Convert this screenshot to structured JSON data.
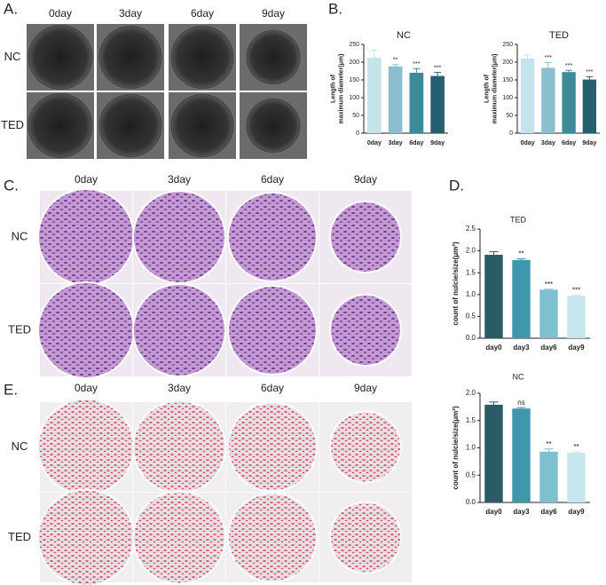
{
  "panels": {
    "A": {
      "label": "A.",
      "columns": [
        "0day",
        "3day",
        "6day",
        "9day"
      ],
      "rows": [
        "NC",
        "TED"
      ]
    },
    "B": {
      "label": "B."
    },
    "C": {
      "label": "C.",
      "columns": [
        "0day",
        "3day",
        "6day",
        "9day"
      ],
      "rows": [
        "NC",
        "TED"
      ]
    },
    "D": {
      "label": "D."
    },
    "E": {
      "label": "E.",
      "columns": [
        "0day",
        "3day",
        "6day",
        "9day"
      ],
      "rows": [
        "NC",
        "TED"
      ]
    }
  },
  "chart_data": [
    {
      "type": "bar",
      "title": "NC",
      "y_label": [
        "Length of",
        "maximum diameter(μm)"
      ],
      "categories": [
        "0day",
        "3day",
        "6day",
        "9day"
      ],
      "values": [
        212,
        188,
        170,
        161
      ],
      "errors": [
        22,
        5,
        12,
        10
      ],
      "annotations": [
        null,
        "**",
        "***",
        "***"
      ],
      "colors": [
        "#c5e3ea",
        "#8bbfcf",
        "#3d8a99",
        "#26606e"
      ],
      "ylim": [
        0,
        250
      ],
      "yticks": [
        0,
        50,
        100,
        150,
        200,
        250
      ]
    },
    {
      "type": "bar",
      "title": "TED",
      "y_label": [
        "Length of",
        "maximum diameter(μm)"
      ],
      "categories": [
        "0day",
        "3day",
        "6day",
        "9day"
      ],
      "values": [
        210,
        184,
        172,
        151
      ],
      "errors": [
        10,
        15,
        5,
        8
      ],
      "annotations": [
        null,
        "***",
        "***",
        "***"
      ],
      "colors": [
        "#c5e3ea",
        "#8bbfcf",
        "#3d8a99",
        "#26606e"
      ],
      "ylim": [
        0,
        250
      ],
      "yticks": [
        0,
        50,
        100,
        150,
        200,
        250
      ]
    },
    {
      "type": "bar",
      "title": "TED",
      "y_label": [
        "count of nulcie/size(μm²)"
      ],
      "categories": [
        "day0",
        "day3",
        "day6",
        "day9"
      ],
      "values": [
        1.91,
        1.79,
        1.11,
        0.97
      ],
      "errors": [
        0.07,
        0.03,
        0.01,
        0.02
      ],
      "annotations": [
        null,
        "**",
        "***",
        "***"
      ],
      "colors": [
        "#2b5c66",
        "#3e98ad",
        "#7fc0d0",
        "#c8e6ee"
      ],
      "ylim": [
        0,
        2.5
      ],
      "yticks": [
        {
          "value": 0,
          "label": "0.0"
        },
        0.5,
        {
          "value": 1,
          "label": "1.0"
        },
        1.5,
        {
          "value": 2,
          "label": "2.0"
        },
        2.5
      ]
    },
    {
      "type": "bar",
      "title": "NC",
      "y_label": [
        "count of nulcie/size(μm²)"
      ],
      "categories": [
        "day0",
        "day3",
        "day6",
        "day9"
      ],
      "values": [
        1.79,
        1.72,
        0.93,
        0.91
      ],
      "errors": [
        0.05,
        0.02,
        0.05,
        0.02
      ],
      "annotations": [
        null,
        "ns",
        "**",
        "**"
      ],
      "colors": [
        "#2b5c66",
        "#3e98ad",
        "#7fc0d0",
        "#c8e6ee"
      ],
      "ylim": [
        0,
        2.0
      ],
      "yticks": [
        {
          "value": 0,
          "label": "0.0"
        },
        0.5,
        {
          "value": 1,
          "label": "1.0"
        },
        1.5,
        {
          "value": 2,
          "label": "2.0"
        }
      ]
    }
  ]
}
